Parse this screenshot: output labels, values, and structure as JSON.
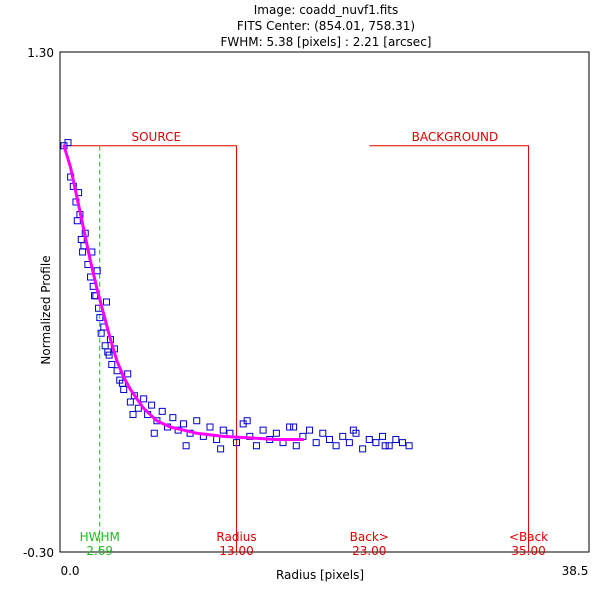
{
  "header": {
    "image_line": "Image: coadd_nuvf1.fits",
    "center_line": "FITS Center: (854.01,  758.31)",
    "fwhm_line": "FWHM: 5.38 [pixels] : 2.21 [arcsec]"
  },
  "colors": {
    "points": "#0000cc",
    "fit": "#ff00ff",
    "regions": "#dd0000",
    "hwhm": "#22bb22"
  },
  "chart_data": {
    "type": "scatter",
    "title": "Image: coadd_nuvf1.fits",
    "xlabel": "Radius [pixels]",
    "ylabel": "Normalized Profile",
    "xlim": [
      0.0,
      38.5
    ],
    "ylim": [
      -0.3,
      1.3
    ],
    "tick_labels": {
      "xmin": "0.0",
      "xmax": "38.5",
      "ymin": "-0.30",
      "ymax": "1.30"
    },
    "regions": [
      {
        "name": "SOURCE",
        "from": 0.0,
        "to": 13.0,
        "top": 1.0
      },
      {
        "name": "BACKGROUND",
        "from": 23.0,
        "to": 35.0,
        "top": 1.0
      }
    ],
    "markers": [
      {
        "name": "HWHM",
        "label": "HWHM",
        "value": "2.69",
        "x": 2.69,
        "style": "dashed",
        "color": "green"
      },
      {
        "name": "radius",
        "label": "Radius",
        "value": "13.00",
        "x": 13.0,
        "style": "solid",
        "color": "red"
      },
      {
        "name": "back-inner",
        "label": "Back>",
        "value": "23.00",
        "x": 23.0,
        "style": "solid",
        "color": "red"
      },
      {
        "name": "back-outer",
        "label": "<Back",
        "value": "35.00",
        "x": 35.0,
        "style": "solid",
        "color": "red"
      }
    ],
    "fit_curve": {
      "name": "profile-fit",
      "x": [
        0.0,
        0.5,
        1.0,
        1.5,
        2.0,
        2.5,
        3.0,
        3.5,
        4.0,
        4.5,
        5.0,
        6.0,
        7.0,
        8.0,
        9.0,
        10.0,
        12.0,
        14.0,
        16.0,
        18.0
      ],
      "y": [
        1.0,
        0.93,
        0.83,
        0.73,
        0.63,
        0.54,
        0.46,
        0.38,
        0.31,
        0.26,
        0.22,
        0.16,
        0.12,
        0.1,
        0.09,
        0.08,
        0.07,
        0.065,
        0.06,
        0.06
      ]
    },
    "series": [
      {
        "name": "pixel values",
        "x": [
          0.0,
          0.3,
          0.5,
          0.7,
          0.9,
          1.0,
          1.1,
          1.2,
          1.3,
          1.5,
          1.6,
          1.8,
          2.0,
          2.1,
          2.2,
          2.4,
          2.5,
          2.6,
          2.7,
          2.8,
          3.0,
          3.1,
          3.2,
          3.4,
          3.5,
          3.6,
          3.8,
          4.0,
          4.2,
          4.5,
          4.8,
          5.0,
          5.3,
          5.6,
          6.0,
          6.3,
          6.6,
          7.0,
          7.4,
          7.8,
          8.2,
          8.6,
          9.0,
          9.5,
          10.0,
          10.5,
          11.0,
          11.5,
          12.0,
          12.5,
          13.0,
          13.5,
          14.0,
          14.5,
          15.0,
          15.5,
          16.0,
          16.5,
          17.0,
          17.5,
          18.0,
          18.5,
          19.0,
          19.5,
          20.0,
          20.5,
          21.0,
          21.5,
          22.0,
          22.5,
          23.0,
          23.5,
          24.0,
          24.5,
          25.0,
          25.5,
          26.0,
          1.4,
          2.3,
          3.3,
          4.4,
          5.2,
          6.8,
          9.2,
          11.8,
          13.8,
          17.3,
          21.8,
          24.2
        ],
        "y": [
          1.0,
          1.01,
          0.9,
          0.87,
          0.82,
          0.76,
          0.85,
          0.78,
          0.7,
          0.68,
          0.72,
          0.62,
          0.58,
          0.66,
          0.55,
          0.52,
          0.6,
          0.48,
          0.45,
          0.4,
          0.42,
          0.36,
          0.5,
          0.33,
          0.38,
          0.3,
          0.35,
          0.28,
          0.25,
          0.22,
          0.27,
          0.18,
          0.2,
          0.16,
          0.19,
          0.14,
          0.17,
          0.12,
          0.15,
          0.1,
          0.13,
          0.09,
          0.11,
          0.08,
          0.12,
          0.07,
          0.1,
          0.06,
          0.09,
          0.08,
          0.05,
          0.11,
          0.07,
          0.04,
          0.09,
          0.06,
          0.08,
          0.05,
          0.1,
          0.04,
          0.07,
          0.09,
          0.05,
          0.08,
          0.06,
          0.04,
          0.07,
          0.05,
          0.08,
          0.03,
          0.06,
          0.05,
          0.07,
          0.04,
          0.06,
          0.05,
          0.04,
          0.66,
          0.52,
          0.34,
          0.24,
          0.14,
          0.08,
          0.04,
          0.03,
          0.12,
          0.1,
          0.09,
          0.04
        ]
      }
    ]
  }
}
